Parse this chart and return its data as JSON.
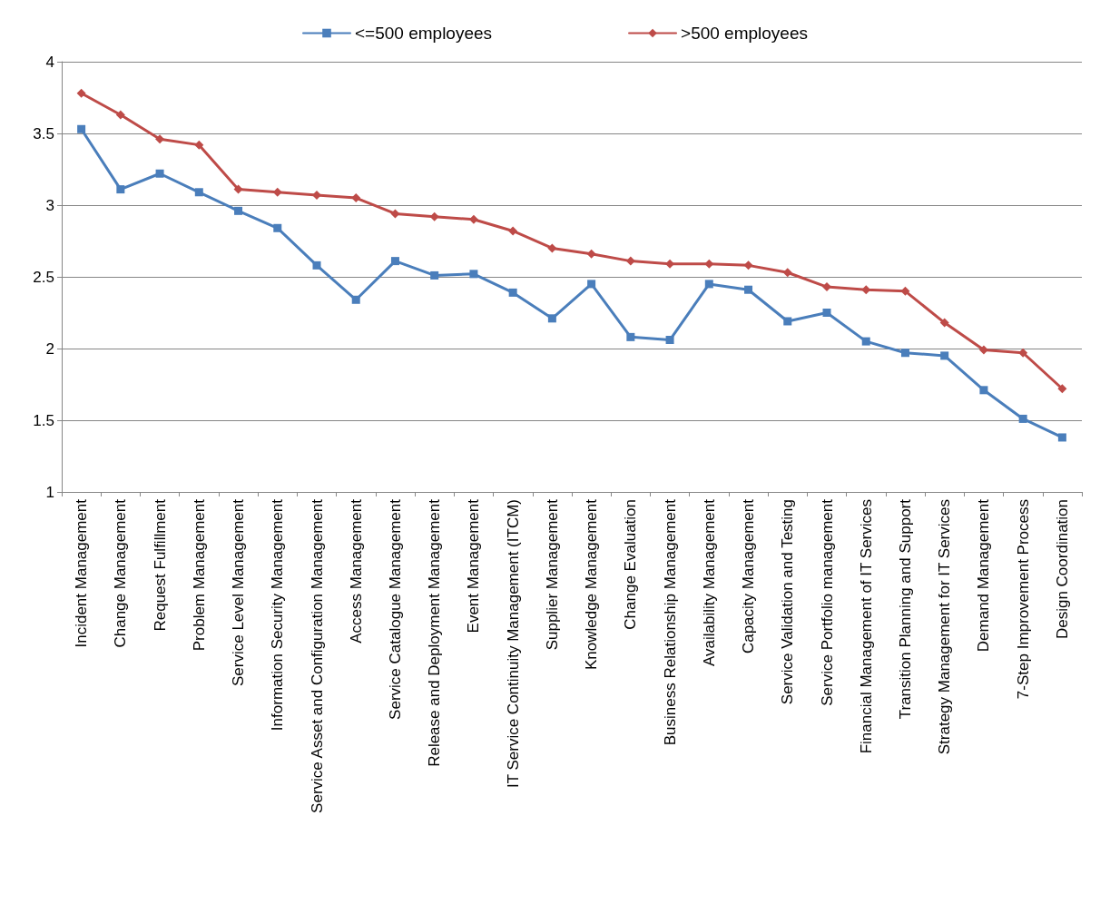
{
  "chart_data": {
    "type": "line",
    "categories": [
      "Incident Management",
      "Change Management",
      "Request Fulfillment",
      "Problem Management",
      "Service Level Management",
      "Information Security Management",
      "Service Asset and Configuration Management",
      "Access Management",
      "Service Catalogue Management",
      "Release and Deployment Management",
      "Event Management",
      "IT Service Continuity Management (ITCM)",
      "Supplier Management",
      "Knowledge Management",
      "Change Evaluation",
      "Business Relationship Management",
      "Availability Management",
      "Capacity Management",
      "Service Validation and Testing",
      "Service Portfolio management",
      "Financial Management of IT Services",
      "Transition Planning and Support",
      "Strategy Management for IT Services",
      "Demand Management",
      "7-Step Improvement Process",
      "Design Coordination"
    ],
    "series": [
      {
        "name": "<=500 employees",
        "color": "#4a7ebb",
        "marker": "square",
        "values": [
          3.53,
          3.11,
          3.22,
          3.09,
          2.96,
          2.84,
          2.58,
          2.34,
          2.61,
          2.51,
          2.52,
          2.39,
          2.21,
          2.45,
          2.08,
          2.06,
          2.45,
          2.41,
          2.19,
          2.25,
          2.05,
          1.97,
          1.95,
          1.71,
          1.51,
          1.38
        ]
      },
      {
        "name": ">500 employees",
        "color": "#be4b48",
        "marker": "diamond",
        "values": [
          3.78,
          3.63,
          3.46,
          3.42,
          3.11,
          3.09,
          3.07,
          3.05,
          2.94,
          2.92,
          2.9,
          2.82,
          2.7,
          2.66,
          2.61,
          2.59,
          2.59,
          2.58,
          2.53,
          2.43,
          2.41,
          2.4,
          2.18,
          1.99,
          1.97,
          1.72
        ]
      }
    ],
    "ylim": [
      1,
      4
    ],
    "yticks": [
      1,
      1.5,
      2,
      2.5,
      3,
      3.5,
      4
    ],
    "grid": "y",
    "legend": "top",
    "line_style": "solid"
  }
}
